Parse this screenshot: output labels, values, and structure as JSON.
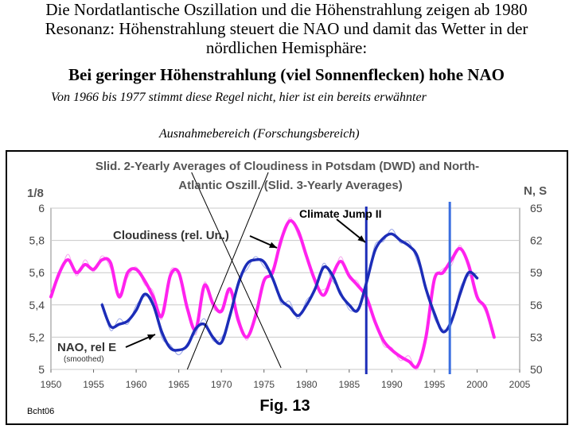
{
  "heading": {
    "line1": "Die Nordatlantische Oszillation und die Höhenstrahlung zeigen ab 1980",
    "line2": "Resonanz: Höhenstrahlung steuert die NAO und damit das Wetter in der",
    "line3": "nördlichen Hemisphäre:",
    "line4": "Bei geringer Höhenstrahlung (viel Sonnenflecken) hohe NAO",
    "note1": "Von 1966 bis 1977 stimmt diese Regel nicht, hier ist ein bereits erwähnter",
    "note2": "Ausnahmebereich (Forschungsbereich)"
  },
  "chart_data": {
    "type": "line",
    "title_line1": "Slid. 2-Yearly Averages of Cloudiness in Potsdam (DWD) and North-",
    "title_line2": "Atlantic  Oszill. (Slid. 3-Yearly Averages)",
    "left_axis_unit": "1/8",
    "right_axis_unit": "N, S",
    "x_range": [
      1950,
      2005
    ],
    "x_ticks": [
      "1950",
      "1955",
      "1960",
      "1965",
      "1970",
      "1975",
      "1980",
      "1985",
      "1990",
      "1995",
      "2000",
      "2005"
    ],
    "y_left_range": [
      5,
      6
    ],
    "y_left_ticks": [
      "5",
      "5,2",
      "5,4",
      "5,6",
      "5,8",
      "6"
    ],
    "y_right_range": [
      50,
      65
    ],
    "y_right_ticks": [
      "50",
      "53",
      "56",
      "59",
      "62",
      "65"
    ],
    "grid": true,
    "series": [
      {
        "name": "Cloudiness (rel. Un.)",
        "axis": "left",
        "color": "#ff22ee",
        "x": [
          1950,
          1951,
          1952,
          1953,
          1954,
          1955,
          1956,
          1957,
          1958,
          1959,
          1960,
          1961,
          1962,
          1963,
          1964,
          1965,
          1966,
          1967,
          1968,
          1969,
          1970,
          1971,
          1972,
          1973,
          1974,
          1975,
          1976,
          1977,
          1978,
          1979,
          1980,
          1981,
          1982,
          1983,
          1984,
          1985,
          1986,
          1987,
          1988,
          1989,
          1990,
          1991,
          1992,
          1993,
          1994,
          1995,
          1996,
          1997,
          1998,
          1999,
          2000,
          2001,
          2002
        ],
        "values": [
          5.45,
          5.6,
          5.68,
          5.6,
          5.65,
          5.62,
          5.68,
          5.66,
          5.45,
          5.6,
          5.62,
          5.55,
          5.45,
          5.33,
          5.58,
          5.6,
          5.38,
          5.25,
          5.52,
          5.41,
          5.36,
          5.5,
          5.3,
          5.2,
          5.33,
          5.55,
          5.6,
          5.8,
          5.92,
          5.86,
          5.7,
          5.55,
          5.46,
          5.58,
          5.67,
          5.58,
          5.52,
          5.45,
          5.3,
          5.18,
          5.12,
          5.08,
          5.05,
          5.02,
          5.2,
          5.56,
          5.6,
          5.68,
          5.75,
          5.65,
          5.45,
          5.38,
          5.2
        ]
      },
      {
        "name": "NAO, rel E",
        "sublabel": "(smoothed)",
        "axis": "right",
        "color": "#1c2db8",
        "x": [
          1956,
          1957,
          1958,
          1959,
          1960,
          1961,
          1962,
          1963,
          1964,
          1965,
          1966,
          1967,
          1968,
          1969,
          1970,
          1971,
          1972,
          1973,
          1974,
          1975,
          1976,
          1977,
          1978,
          1979,
          1980,
          1981,
          1982,
          1983,
          1984,
          1985,
          1986,
          1987,
          1988,
          1989,
          1990,
          1991,
          1992,
          1993,
          1994,
          1995,
          1996,
          1997,
          1998,
          1999,
          2000
        ],
        "values": [
          56.0,
          54.0,
          54.2,
          54.5,
          55.5,
          57.0,
          56.0,
          53.5,
          52.0,
          51.8,
          52.2,
          53.8,
          54.2,
          53.0,
          52.5,
          55.0,
          58.0,
          59.8,
          60.2,
          60.0,
          58.5,
          56.5,
          55.8,
          55.0,
          56.0,
          57.5,
          59.5,
          58.8,
          57.0,
          56.0,
          55.5,
          58.0,
          61.0,
          62.2,
          62.6,
          62.0,
          61.5,
          60.5,
          57.5,
          55.2,
          53.5,
          54.5,
          57.0,
          59.0,
          58.5
        ]
      }
    ],
    "annotations": {
      "climate_jump": "Climate Jump II",
      "cloudiness_label": "Cloudiness (rel. Un.)",
      "nao_label": "NAO, rel E",
      "nao_sublabel": "(smoothed)",
      "fig_label": "Fig. 13",
      "author": "Bcht06",
      "vertical_lines": [
        1987.0,
        1996.8
      ]
    }
  }
}
